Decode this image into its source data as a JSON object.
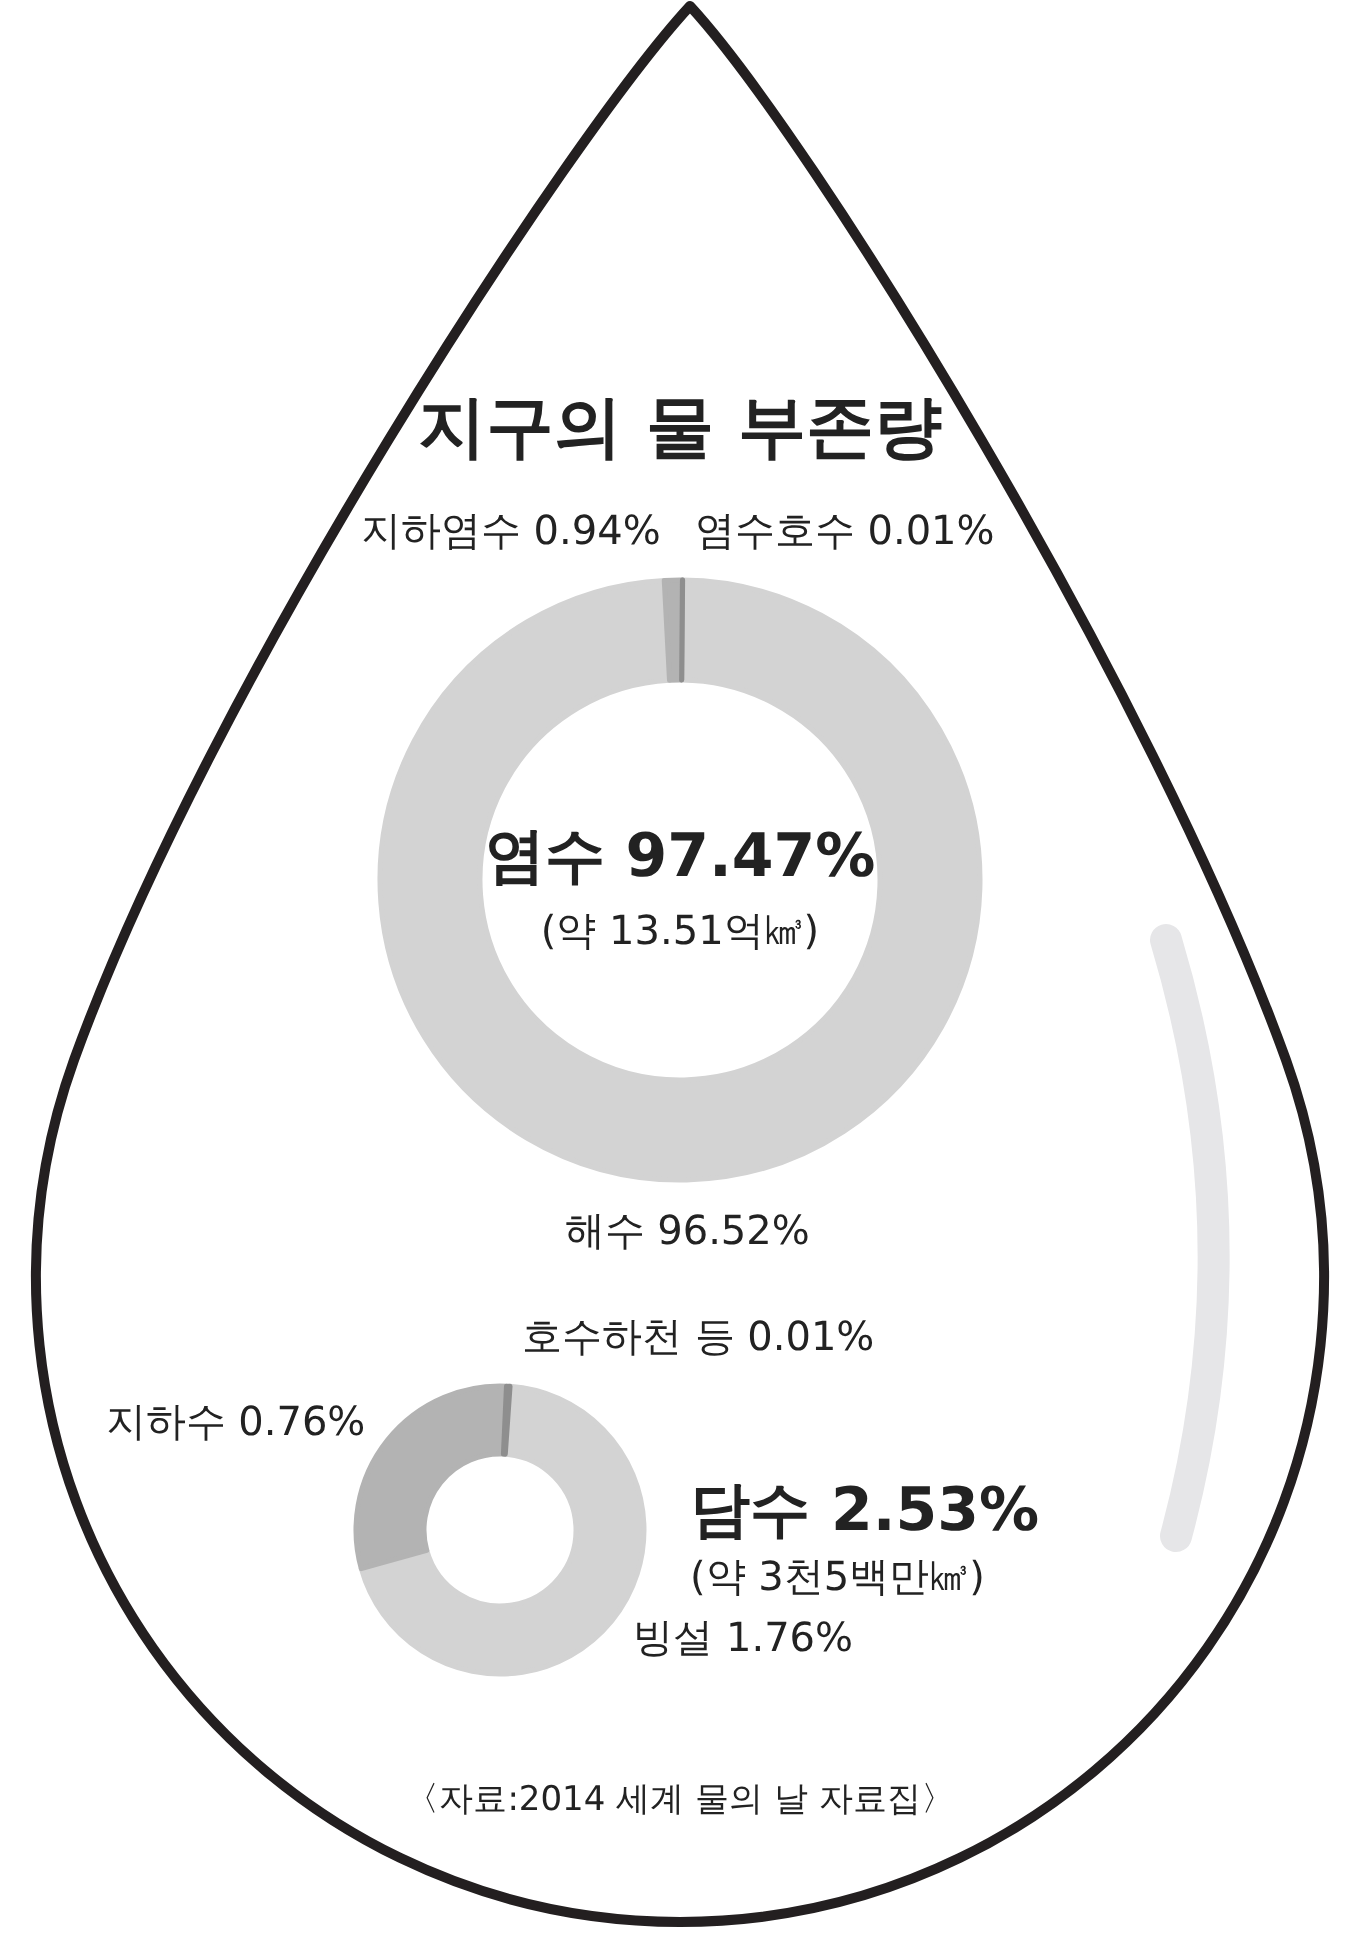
{
  "chart_data": [
    {
      "type": "donut",
      "title": "지구의 물 부존량",
      "categories": [
        "해수",
        "지하염수",
        "염수호수"
      ],
      "values": [
        96.52,
        0.94,
        0.01
      ],
      "colors": [
        "#d3d3d3",
        "#b3b3b3",
        "#8e8e8e"
      ],
      "value_labels": [
        "96.52%",
        "0.94%",
        "0.01%"
      ],
      "annotations": [
        "염수 97.47%",
        "(약 13.51억㎦)"
      ]
    },
    {
      "type": "donut",
      "categories": [
        "빙설",
        "지하수",
        "호수하천 등"
      ],
      "values": [
        1.76,
        0.76,
        0.01
      ],
      "colors": [
        "#d3d3d3",
        "#b3b3b3",
        "#8e8e8e"
      ],
      "value_labels": [
        "1.76%",
        "0.76%",
        "0.01%"
      ],
      "annotations": [
        "담수 2.53%",
        "(약 3천5백만㎦)",
        "〈자료:2014 세계 물의 날 자료집〉"
      ]
    }
  ]
}
